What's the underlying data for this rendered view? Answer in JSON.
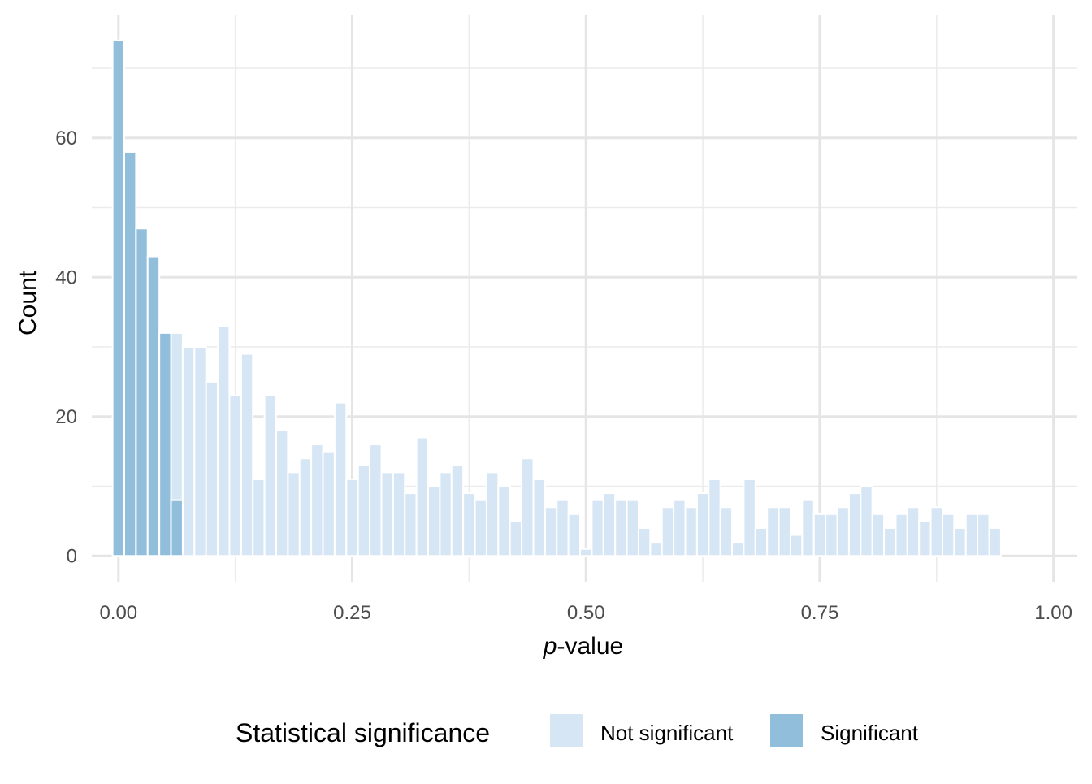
{
  "chart_data": {
    "type": "bar",
    "title": "",
    "x_axis": {
      "label_prefix": "p",
      "label_suffix": "-value",
      "ticks": [
        0.0,
        0.25,
        0.5,
        0.75,
        1.0
      ],
      "tick_labels": [
        "0.00",
        "0.25",
        "0.50",
        "0.75",
        "1.00"
      ],
      "range": [
        -0.0285,
        1.0255
      ]
    },
    "y_axis": {
      "label": "Count",
      "ticks": [
        0,
        20,
        40,
        60
      ],
      "tick_labels": [
        "0",
        "20",
        "40",
        "60"
      ],
      "range": [
        -3.7,
        77.7
      ]
    },
    "grid": true,
    "legend": {
      "title": "Statistical significance",
      "position": "bottom",
      "items": [
        {
          "key": "not_significant",
          "label": "Not significant",
          "color": "#d6e6f4"
        },
        {
          "key": "significant",
          "label": "Significant",
          "color": "#91bfdb"
        }
      ]
    },
    "bin_width": 0.0125,
    "series": [
      {
        "key": "not_significant",
        "name": "Not significant",
        "color": "#d6e6f4",
        "x": [
          0.0625,
          0.075,
          0.0875,
          0.1,
          0.1125,
          0.125,
          0.1375,
          0.15,
          0.1625,
          0.175,
          0.1875,
          0.2,
          0.2125,
          0.225,
          0.2375,
          0.25,
          0.2625,
          0.275,
          0.2875,
          0.3,
          0.3125,
          0.325,
          0.3375,
          0.35,
          0.3625,
          0.375,
          0.3875,
          0.4,
          0.4125,
          0.425,
          0.4375,
          0.45,
          0.4625,
          0.475,
          0.4875,
          0.5,
          0.5125,
          0.525,
          0.5375,
          0.55,
          0.5625,
          0.575,
          0.5875,
          0.6,
          0.6125,
          0.625,
          0.6375,
          0.65,
          0.6625,
          0.675,
          0.6875,
          0.7,
          0.7125,
          0.725,
          0.7375,
          0.75,
          0.7625,
          0.775,
          0.7875,
          0.8,
          0.8125,
          0.825,
          0.8375,
          0.85,
          0.8625,
          0.875,
          0.8875,
          0.9,
          0.9125,
          0.925,
          0.9375,
          0.95,
          0.9625,
          0.975,
          0.9875,
          1.0
        ],
        "values": [
          24,
          30,
          30,
          25,
          33,
          23,
          29,
          11,
          23,
          18,
          12,
          14,
          16,
          15,
          22,
          11,
          13,
          16,
          12,
          12,
          9,
          17,
          10,
          12,
          13,
          9,
          8,
          12,
          10,
          5,
          14,
          11,
          7,
          8,
          6,
          1,
          8,
          9,
          8,
          8,
          4,
          2,
          7,
          8,
          7,
          9,
          11,
          7,
          2,
          11,
          4,
          7,
          7,
          3,
          8,
          6,
          6,
          7,
          9,
          10,
          6,
          4,
          6,
          7,
          5,
          7,
          6,
          4,
          6,
          6,
          4,
          0,
          0,
          0,
          0,
          0
        ],
        "stack_base": [
          8,
          0,
          0,
          0,
          0,
          0,
          0,
          0,
          0,
          0,
          0,
          0,
          0,
          0,
          0,
          0,
          0,
          0,
          0,
          0,
          0,
          0,
          0,
          0,
          0,
          0,
          0,
          0,
          0,
          0,
          0,
          0,
          0,
          0,
          0,
          0,
          0,
          0,
          0,
          0,
          0,
          0,
          0,
          0,
          0,
          0,
          0,
          0,
          0,
          0,
          0,
          0,
          0,
          0,
          0,
          0,
          0,
          0,
          0,
          0,
          0,
          0,
          0,
          0,
          0,
          0,
          0,
          0,
          0,
          0,
          0,
          0,
          0,
          0,
          0,
          0
        ]
      },
      {
        "key": "significant",
        "name": "Significant",
        "color": "#91bfdb",
        "x": [
          0.0,
          0.0125,
          0.025,
          0.0375,
          0.05,
          0.0625
        ],
        "values": [
          74,
          58,
          47,
          43,
          32,
          8
        ],
        "stack_base": [
          0,
          0,
          0,
          0,
          0,
          0
        ]
      }
    ],
    "notes": "Histogram of p-values; bars colored by significance. The bar at 0.0625 is stacked (8 significant + 24 not significant)."
  }
}
